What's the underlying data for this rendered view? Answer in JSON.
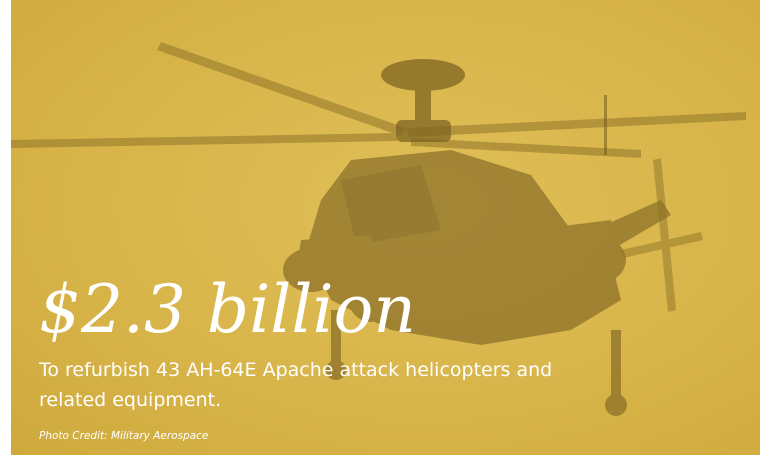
{
  "headline": "$2.3 billion",
  "description": "To refurbish 43 AH-64E Apache attack helicopters and related equipment.",
  "photo_credit": "Photo Credit: Military Aerospace",
  "colors": {
    "overlay": "#d9b64c",
    "silhouette": "#8a6f24",
    "text": "#ffffff"
  }
}
